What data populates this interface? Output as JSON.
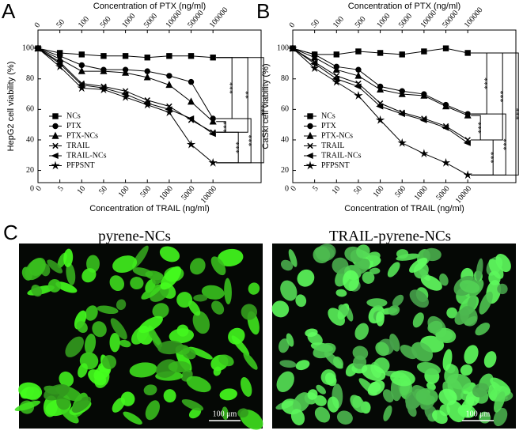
{
  "chart_data": [
    {
      "type": "line",
      "panel_label": "A",
      "x_label": "Concentration of TRAIL (ng/ml)",
      "x2_label": "Concentration of PTX (ng/ml)",
      "y_label": "HepG2 cell viability (%)",
      "categories": [
        "0",
        "5",
        "10",
        "50",
        "100",
        "500",
        "1000",
        "5000",
        "10000"
      ],
      "x2_categories": [
        "0",
        "50",
        "100",
        "500",
        "1000",
        "5000",
        "10000",
        "50000",
        "100000"
      ],
      "ylim": [
        12,
        112
      ],
      "yticks": [
        20,
        40,
        60,
        80,
        100
      ],
      "series": [
        {
          "name": "NCs",
          "color": "#000000",
          "marker": "square",
          "values": [
            100,
            97,
            96,
            95,
            95,
            94,
            95,
            95,
            94
          ]
        },
        {
          "name": "PTX",
          "color": "#000000",
          "marker": "circle",
          "values": [
            100,
            95,
            89,
            86,
            86,
            85,
            82,
            78,
            54
          ]
        },
        {
          "name": "PTX-NCs",
          "color": "#000000",
          "marker": "triangle",
          "values": [
            100,
            93,
            85,
            85,
            84,
            81,
            76,
            65,
            52
          ]
        },
        {
          "name": "TRAIL",
          "color": "#000000",
          "marker": "cross",
          "values": [
            100,
            91,
            77,
            75,
            72,
            66,
            62,
            53,
            45
          ]
        },
        {
          "name": "TRAIL-NCs",
          "color": "#000000",
          "marker": "triangle-left",
          "values": [
            100,
            90,
            76,
            74,
            70,
            64,
            60,
            54,
            44
          ]
        },
        {
          "name": "PFPSNT",
          "color": "#000000",
          "marker": "star",
          "values": [
            100,
            88,
            74,
            73,
            68,
            63,
            58,
            37,
            25
          ]
        }
      ],
      "annotations": [
        "***",
        "**",
        "***",
        "***",
        "***",
        "***"
      ]
    },
    {
      "type": "line",
      "panel_label": "B",
      "x_label": "Concentration of TRAIL (ng/ml)",
      "x2_label": "Concentration of PTX (ng/ml)",
      "y_label": "CaSki cell viability (%)",
      "categories": [
        "0",
        "5",
        "10",
        "50",
        "100",
        "500",
        "1000",
        "5000",
        "10000"
      ],
      "x2_categories": [
        "0",
        "50",
        "100",
        "500",
        "1000",
        "5000",
        "10000",
        "50000",
        "100000"
      ],
      "ylim": [
        12,
        112
      ],
      "yticks": [
        20,
        40,
        60,
        80,
        100
      ],
      "series": [
        {
          "name": "NCs",
          "color": "#000000",
          "marker": "square",
          "values": [
            100,
            96,
            96,
            98,
            97,
            96,
            98,
            100,
            97
          ]
        },
        {
          "name": "PTX",
          "color": "#000000",
          "marker": "circle",
          "values": [
            100,
            96,
            88,
            86,
            75,
            72,
            70,
            63,
            57
          ]
        },
        {
          "name": "PTX-NCs",
          "color": "#000000",
          "marker": "triangle",
          "values": [
            100,
            94,
            86,
            82,
            73,
            70,
            69,
            62,
            56
          ]
        },
        {
          "name": "TRAIL",
          "color": "#000000",
          "marker": "cross",
          "values": [
            100,
            91,
            82,
            77,
            64,
            58,
            54,
            49,
            40
          ]
        },
        {
          "name": "TRAIL-NCs",
          "color": "#000000",
          "marker": "triangle-left",
          "values": [
            100,
            90,
            80,
            75,
            62,
            57,
            53,
            48,
            38
          ]
        },
        {
          "name": "PFPSNT",
          "color": "#000000",
          "marker": "star",
          "values": [
            100,
            87,
            78,
            69,
            53,
            38,
            31,
            25,
            17
          ]
        }
      ],
      "annotations": [
        "***",
        "***",
        "***",
        "***",
        "***",
        "***"
      ]
    }
  ],
  "panel_c": {
    "label": "C",
    "images": [
      {
        "title": "pyrene-NCs",
        "scale_bar": "100 μm"
      },
      {
        "title": "TRAIL-pyrene-NCs",
        "scale_bar": "100 μm"
      }
    ]
  }
}
